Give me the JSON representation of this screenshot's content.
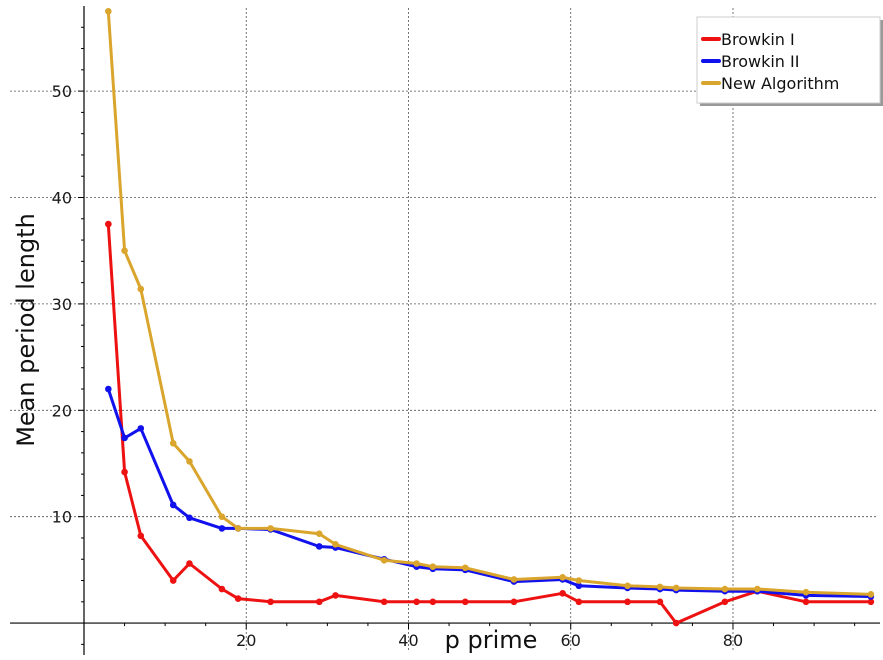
{
  "chart_data": {
    "type": "line",
    "title": "",
    "xlabel": "p prime",
    "ylabel": "Mean period length",
    "xlim": [
      0,
      98
    ],
    "ylim": [
      -3,
      58
    ],
    "x_ticks": [
      20,
      40,
      60,
      80
    ],
    "y_ticks": [
      10,
      20,
      30,
      40,
      50
    ],
    "grid": true,
    "legend_position": "top-right",
    "x": [
      3,
      5,
      7,
      11,
      13,
      17,
      19,
      23,
      29,
      31,
      37,
      41,
      43,
      47,
      53,
      59,
      61,
      67,
      71,
      73,
      79,
      83,
      89,
      97
    ],
    "series": [
      {
        "name": "Browkin I",
        "color": "#ee1111",
        "values": [
          37.5,
          14.2,
          8.2,
          4.0,
          5.6,
          3.2,
          2.3,
          2.0,
          2.0,
          2.6,
          2.0,
          2.0,
          2.0,
          2.0,
          2.0,
          2.8,
          2.0,
          2.0,
          2.0,
          0.0,
          2.0,
          3.0,
          2.0,
          2.0
        ]
      },
      {
        "name": "Browkin II",
        "color": "#1111ee",
        "values": [
          22.0,
          17.4,
          18.3,
          11.1,
          9.9,
          8.9,
          8.9,
          8.8,
          7.2,
          7.1,
          6.0,
          5.3,
          5.1,
          5.0,
          3.9,
          4.1,
          3.5,
          3.3,
          3.2,
          3.1,
          3.0,
          3.0,
          2.6,
          2.5
        ]
      },
      {
        "name": "New Algorithm",
        "color": "#daa52c",
        "values": [
          57.5,
          35.0,
          31.4,
          16.9,
          15.2,
          10.0,
          8.9,
          8.9,
          8.4,
          7.4,
          5.9,
          5.6,
          5.3,
          5.2,
          4.1,
          4.3,
          4.0,
          3.5,
          3.4,
          3.3,
          3.2,
          3.2,
          2.9,
          2.7
        ]
      }
    ]
  }
}
